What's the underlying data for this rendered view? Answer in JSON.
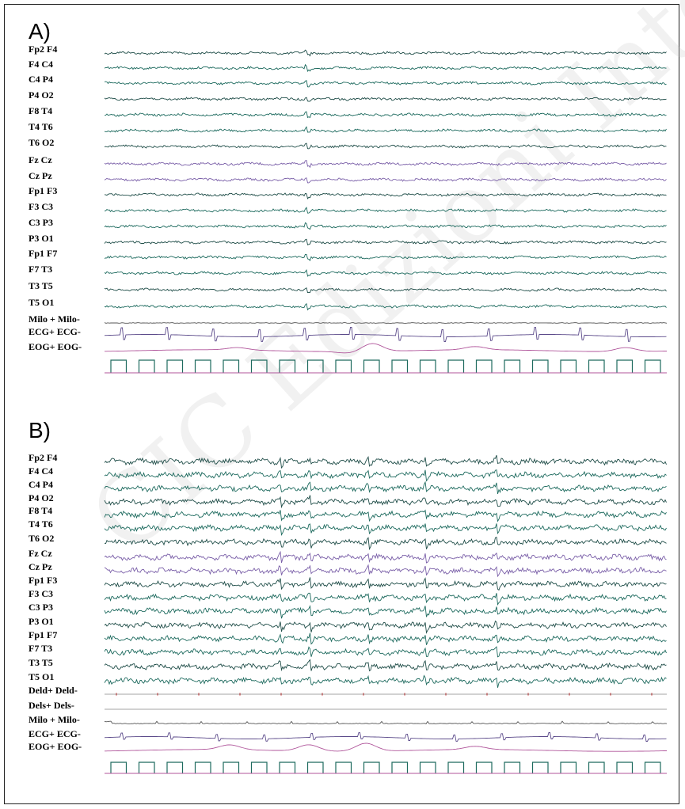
{
  "watermark": "CIC Edizioni Internazionali",
  "colors": {
    "eeg": "#1d6a5e",
    "eeg_dark": "#1f4d48",
    "midline": "#7a5fa8",
    "emg": "#555555",
    "ecg": "#5b4a8a",
    "eog": "#b0569b",
    "marker": "#1d6a5e",
    "flat": "#888888",
    "red_mark": "#d04a4a"
  },
  "chart_data": [
    {
      "type": "line",
      "panel": "A)",
      "description_kind": "polysomnography-traces",
      "channels": [
        {
          "label": "Fp2 F4",
          "kind": "eeg"
        },
        {
          "label": "F4 C4",
          "kind": "eeg"
        },
        {
          "label": "C4 P4",
          "kind": "eeg"
        },
        {
          "label": "P4 O2",
          "kind": "eeg"
        },
        {
          "label": "F8 T4",
          "kind": "eeg"
        },
        {
          "label": "T4 T6",
          "kind": "eeg"
        },
        {
          "label": "T6 O2",
          "kind": "eeg"
        },
        {
          "label": "Fz Cz",
          "kind": "midline"
        },
        {
          "label": "Cz Pz",
          "kind": "midline"
        },
        {
          "label": "Fp1 F3",
          "kind": "eeg"
        },
        {
          "label": "F3 C3",
          "kind": "eeg"
        },
        {
          "label": "C3 P3",
          "kind": "eeg"
        },
        {
          "label": "P3 O1",
          "kind": "eeg"
        },
        {
          "label": "Fp1 F7",
          "kind": "eeg"
        },
        {
          "label": "F7 T3",
          "kind": "eeg"
        },
        {
          "label": "T3 T5",
          "kind": "eeg"
        },
        {
          "label": "T5 O1",
          "kind": "eeg"
        },
        {
          "label": "Milo + Milo-",
          "kind": "emg"
        },
        {
          "label": "ECG+ ECG-",
          "kind": "ecg"
        },
        {
          "label": "EOG+ EOG-",
          "kind": "eog"
        }
      ],
      "seconds": 20
    },
    {
      "type": "line",
      "panel": "B)",
      "description_kind": "polysomnography-traces",
      "channels": [
        {
          "label": "Fp2 F4",
          "kind": "eeg"
        },
        {
          "label": "F4 C4",
          "kind": "eeg"
        },
        {
          "label": "C4 P4",
          "kind": "eeg"
        },
        {
          "label": "P4 O2",
          "kind": "eeg"
        },
        {
          "label": "F8 T4",
          "kind": "eeg"
        },
        {
          "label": "T4 T6",
          "kind": "eeg"
        },
        {
          "label": "T6 O2",
          "kind": "eeg"
        },
        {
          "label": "Fz Cz",
          "kind": "midline"
        },
        {
          "label": "Cz Pz",
          "kind": "midline"
        },
        {
          "label": "Fp1 F3",
          "kind": "eeg"
        },
        {
          "label": "F3 C3",
          "kind": "eeg"
        },
        {
          "label": "C3 P3",
          "kind": "eeg"
        },
        {
          "label": "P3 O1",
          "kind": "eeg"
        },
        {
          "label": "Fp1 F7",
          "kind": "eeg"
        },
        {
          "label": "F7 T3",
          "kind": "eeg"
        },
        {
          "label": "T3 T5",
          "kind": "eeg"
        },
        {
          "label": "T5 O1",
          "kind": "eeg"
        },
        {
          "label": "Deld+ Deld-",
          "kind": "flat_red"
        },
        {
          "label": "Dels+ Dels-",
          "kind": "flat"
        },
        {
          "label": "Milo + Milo-",
          "kind": "emg"
        },
        {
          "label": "ECG+ ECG-",
          "kind": "ecg"
        },
        {
          "label": "EOG+ EOG-",
          "kind": "eog"
        }
      ],
      "seconds": 20
    }
  ]
}
